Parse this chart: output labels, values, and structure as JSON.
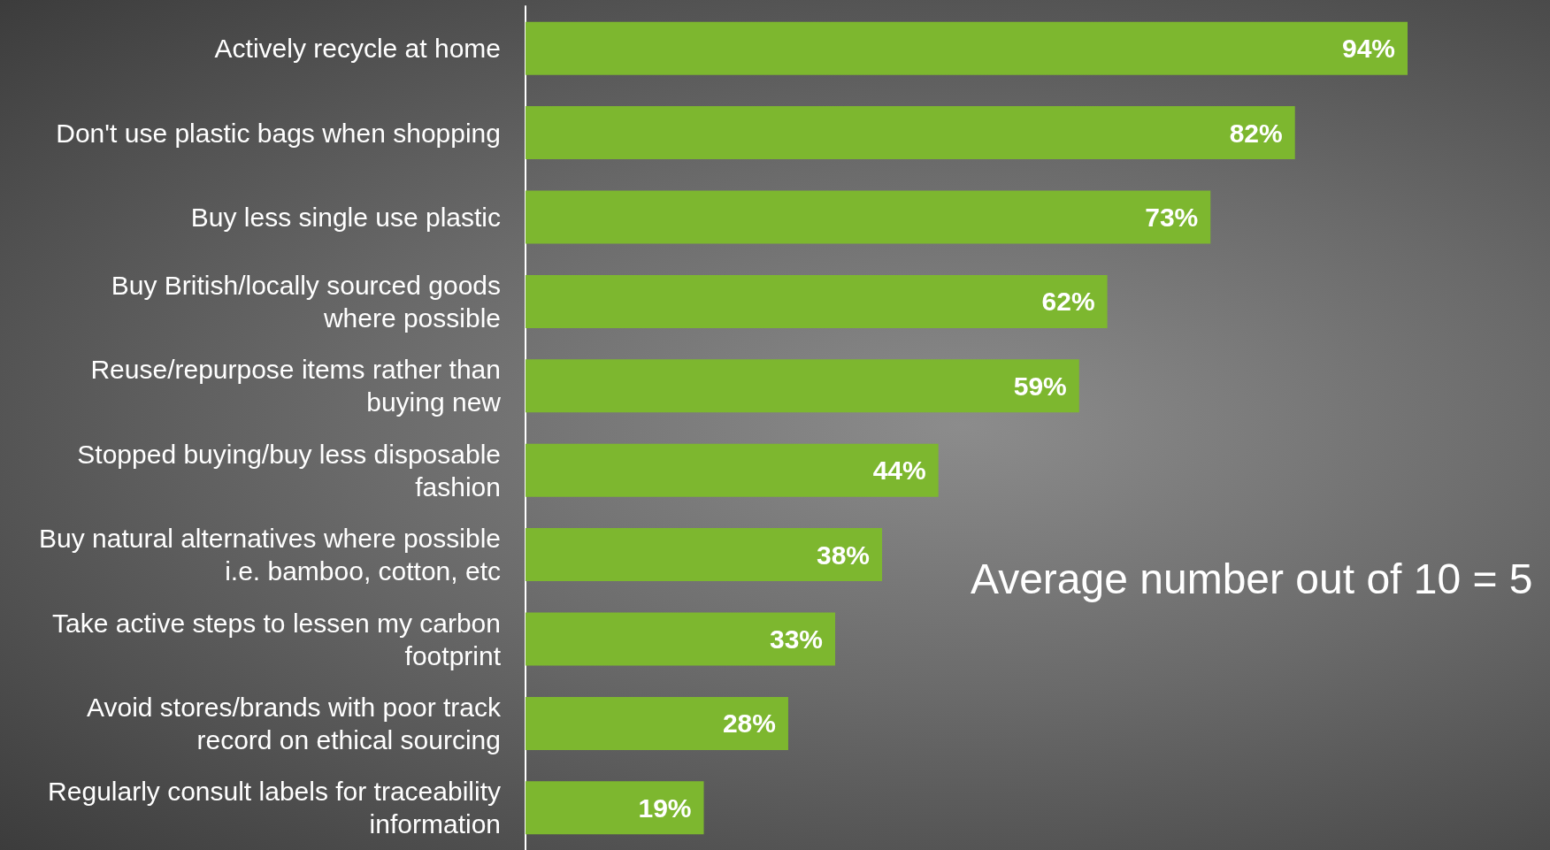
{
  "chart_data": {
    "type": "bar",
    "orientation": "horizontal",
    "categories": [
      "Actively recycle at home",
      "Don't use plastic bags when shopping",
      "Buy less single use plastic",
      "Buy British/locally sourced goods\nwhere possible",
      "Reuse/repurpose items rather than\nbuying new",
      "Stopped buying/buy less disposable\nfashion",
      "Buy natural alternatives where possible\ni.e. bamboo, cotton, etc",
      "Take active steps to lessen my carbon\nfootprint",
      "Avoid stores/brands with poor track\nrecord on ethical sourcing",
      "Regularly consult labels for traceability\ninformation"
    ],
    "values": [
      94,
      82,
      73,
      62,
      59,
      44,
      38,
      33,
      28,
      19
    ],
    "value_labels": [
      "94%",
      "82%",
      "73%",
      "62%",
      "59%",
      "44%",
      "38%",
      "33%",
      "28%",
      "19%"
    ],
    "color": "#7db72f",
    "annotations": [
      "Average number out of 10 = 5"
    ],
    "grid": false
  }
}
